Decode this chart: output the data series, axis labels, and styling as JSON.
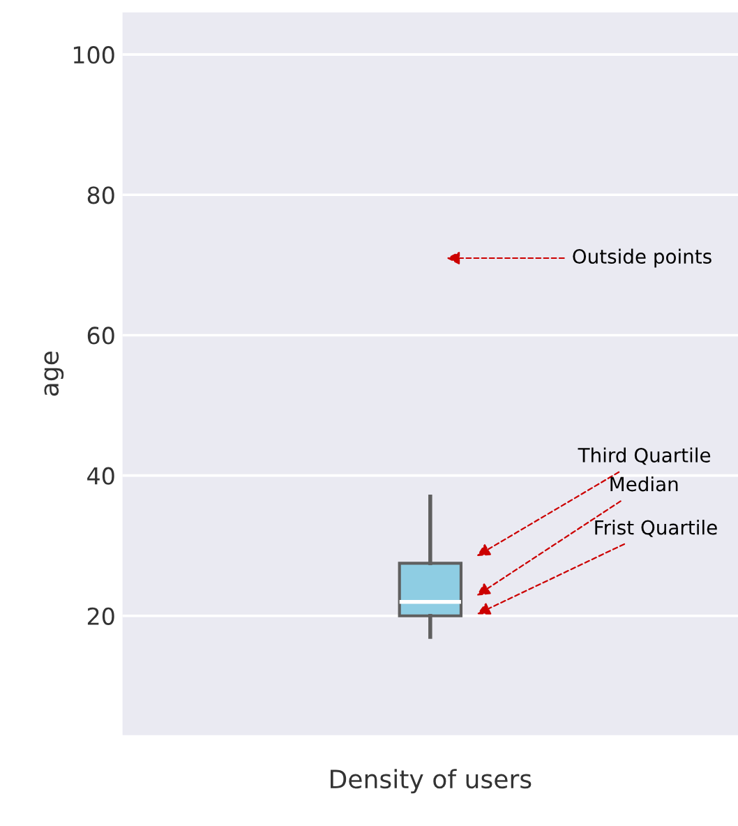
{
  "chart_data": {
    "type": "box",
    "xlabel": "Density of users",
    "ylabel": "age",
    "categories": [
      null
    ],
    "boxes": [
      {
        "low": 17,
        "q1": 20,
        "median": 22,
        "q3": 27.5,
        "high": 37
      }
    ],
    "color": "#8ecde3",
    "ylim": [
      3,
      106
    ],
    "yticks": [
      20,
      40,
      60,
      80,
      100
    ],
    "grid": "y",
    "annotations": [
      "Outside points",
      "Third Quartile",
      "Median",
      "Frist Quartile"
    ]
  }
}
